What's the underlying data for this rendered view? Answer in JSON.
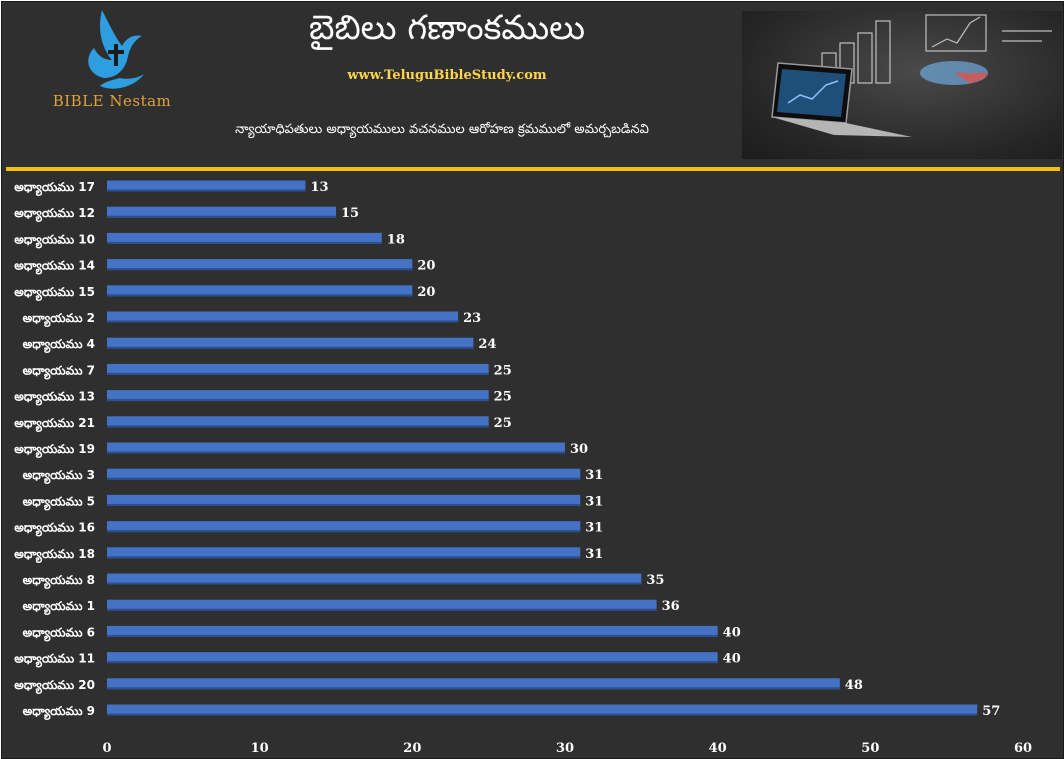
{
  "header": {
    "title": "బైబిలు గణాంకములు",
    "website": "www.TeluguBibleStudy.com",
    "subtitle": "న్యాయాధిపతులు అధ్యాయములు వచనముల ఆరోహణ క్రమములో అమర్చబడినవి",
    "logo_text": "BIBLE Nestam",
    "logo_icon": "dove-cross-icon",
    "header_image": "laptop-charts-image"
  },
  "colors": {
    "background": "#2f2f2f",
    "bar": "#4472c4",
    "divider": "#f2c200",
    "label": "#ffffff",
    "website": "#ffd54a"
  },
  "chart_data": {
    "type": "bar",
    "orientation": "horizontal",
    "categories": [
      "అధ్యాయము 17",
      "అధ్యాయము 12",
      "అధ్యాయము 10",
      "అధ్యాయము 14",
      "అధ్యాయము 15",
      "అధ్యాయము 2",
      "అధ్యాయము 4",
      "అధ్యాయము 7",
      "అధ్యాయము 13",
      "అధ్యాయము 21",
      "అధ్యాయము 19",
      "అధ్యాయము 3",
      "అధ్యాయము 5",
      "అధ్యాయము 16",
      "అధ్యాయము 18",
      "అధ్యాయము 8",
      "అధ్యాయము 1",
      "అధ్యాయము 6",
      "అధ్యాయము 11",
      "అధ్యాయము 20",
      "అధ్యాయము 9"
    ],
    "values": [
      13,
      15,
      18,
      20,
      20,
      23,
      24,
      25,
      25,
      25,
      30,
      31,
      31,
      31,
      31,
      35,
      36,
      40,
      40,
      48,
      57
    ],
    "xlim": [
      0,
      60
    ],
    "xticks": [
      0,
      10,
      20,
      30,
      40,
      50,
      60
    ],
    "grid": false,
    "data_labels": true
  }
}
